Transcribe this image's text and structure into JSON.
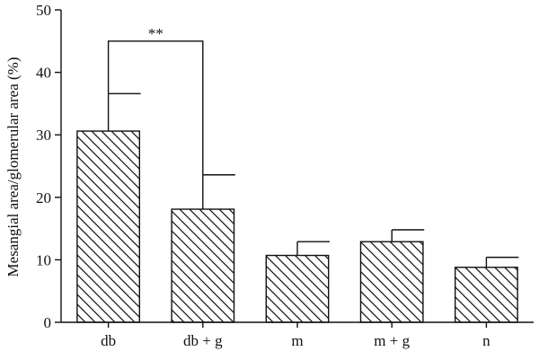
{
  "chart_data": {
    "type": "bar",
    "title": "",
    "xlabel": "",
    "ylabel": "Mesangial area/glomerular area (%)",
    "categories": [
      "db",
      "db + g",
      "m",
      "m + g",
      "n"
    ],
    "values": [
      30.6,
      18.1,
      10.7,
      12.9,
      8.8
    ],
    "errors": [
      6.0,
      5.5,
      2.2,
      1.9,
      1.6
    ],
    "ylim": [
      0,
      50
    ],
    "yticks": [
      0,
      10,
      20,
      30,
      40,
      50
    ],
    "grid": false,
    "bar_fill": "hatched",
    "annotations": [
      {
        "text": "**",
        "from_category": "db",
        "to_category": "db + g",
        "bracket_y": 45
      }
    ]
  }
}
